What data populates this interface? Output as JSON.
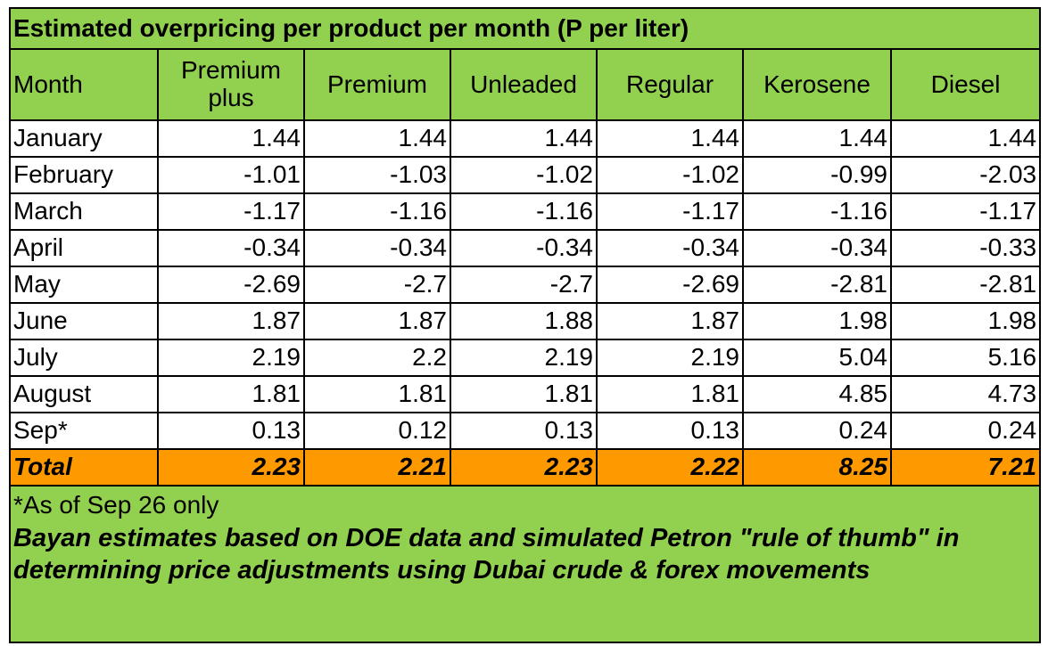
{
  "chart_data": {
    "type": "table",
    "title": "Estimated overpricing per product per month (P per liter)",
    "columns": [
      "Month",
      "Premium plus",
      "Premium",
      "Unleaded",
      "Regular",
      "Kerosene",
      "Diesel"
    ],
    "rows": [
      {
        "month": "January",
        "values": [
          "1.44",
          "1.44",
          "1.44",
          "1.44",
          "1.44",
          "1.44"
        ]
      },
      {
        "month": "February",
        "values": [
          "-1.01",
          "-1.03",
          "-1.02",
          "-1.02",
          "-0.99",
          "-2.03"
        ]
      },
      {
        "month": "March",
        "values": [
          "-1.17",
          "-1.16",
          "-1.16",
          "-1.17",
          "-1.16",
          "-1.17"
        ]
      },
      {
        "month": "April",
        "values": [
          "-0.34",
          "-0.34",
          "-0.34",
          "-0.34",
          "-0.34",
          "-0.33"
        ]
      },
      {
        "month": "May",
        "values": [
          "-2.69",
          "-2.7",
          "-2.7",
          "-2.69",
          "-2.81",
          "-2.81"
        ]
      },
      {
        "month": "June",
        "values": [
          "1.87",
          "1.87",
          "1.88",
          "1.87",
          "1.98",
          "1.98"
        ]
      },
      {
        "month": "July",
        "values": [
          "2.19",
          "2.2",
          "2.19",
          "2.19",
          "5.04",
          "5.16"
        ]
      },
      {
        "month": "August",
        "values": [
          "1.81",
          "1.81",
          "1.81",
          "1.81",
          "4.85",
          "4.73"
        ]
      },
      {
        "month": "Sep*",
        "values": [
          "0.13",
          "0.12",
          "0.13",
          "0.13",
          "0.24",
          "0.24"
        ]
      }
    ],
    "total": {
      "label": "Total",
      "values": [
        "2.23",
        "2.21",
        "2.23",
        "2.22",
        "8.25",
        "7.21"
      ]
    },
    "footnote": "*As of Sep 26 only",
    "source_note": "Bayan estimates based on DOE data and simulated Petron \"rule of thumb\" in determining price adjustments using Dubai crude & forex movements"
  },
  "colors": {
    "header_fill": "#92d050",
    "total_fill": "#ff9900",
    "cell_fill": "#ffffff",
    "border": "#000000"
  }
}
